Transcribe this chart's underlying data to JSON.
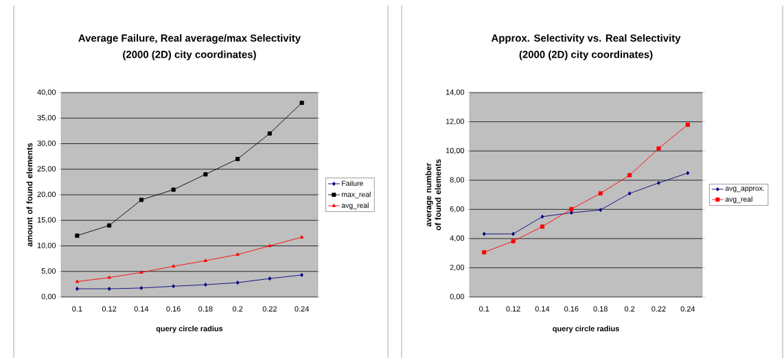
{
  "chart_data": [
    {
      "type": "line",
      "title": "Average Failure, Real average/max Selectivity",
      "subtitle": "(2000 (2D) city coordinates)",
      "xlabel": "query circle radius",
      "ylabel": "amount of found elements",
      "categories": [
        "0.1",
        "0.12",
        "0.14",
        "0.16",
        "0.18",
        "0.2",
        "0.22",
        "0.24"
      ],
      "series": [
        {
          "name": "Failure",
          "color": "#000080",
          "marker": "diamond",
          "values": [
            1.6,
            1.6,
            1.75,
            2.1,
            2.4,
            2.8,
            3.6,
            4.3
          ]
        },
        {
          "name": "max_real",
          "color": "#000000",
          "marker": "square",
          "values": [
            12,
            14,
            19,
            21,
            24,
            27,
            32,
            38
          ]
        },
        {
          "name": "avg_real",
          "color": "#ff0000",
          "marker": "triangle",
          "values": [
            3.0,
            3.8,
            4.8,
            6.0,
            7.1,
            8.3,
            10.0,
            11.7
          ]
        }
      ],
      "ylim": [
        0,
        40
      ],
      "yticks": [
        {
          "value": 0,
          "label": "0,00"
        },
        {
          "value": 5,
          "label": "5,00"
        },
        {
          "value": 10,
          "label": "10,00"
        },
        {
          "value": 15,
          "label": "15,00"
        },
        {
          "value": 20,
          "label": "20,00"
        },
        {
          "value": 25,
          "label": "25,00"
        },
        {
          "value": 30,
          "label": "30,00"
        },
        {
          "value": 35,
          "label": "35,00"
        },
        {
          "value": 40,
          "label": "40,00"
        }
      ],
      "grid": "y",
      "legend": "right",
      "line_style": "solid"
    },
    {
      "type": "line",
      "title": "Approx. Selectivity vs. Real Selectivity",
      "subtitle": "(2000 (2D) city coordinates)",
      "xlabel": "query circle radius",
      "ylabel": "average number of found elements",
      "categories": [
        "0.1",
        "0.12",
        "0.14",
        "0.16",
        "0.18",
        "0.2",
        "0.22",
        "0.24"
      ],
      "series": [
        {
          "name": "avg_approx.",
          "color": "#000080",
          "marker": "diamond",
          "values": [
            4.32,
            4.32,
            5.5,
            5.77,
            5.96,
            7.09,
            7.81,
            8.49
          ]
        },
        {
          "name": "avg_real",
          "color": "#ff0000",
          "marker": "square",
          "values": [
            3.06,
            3.82,
            4.82,
            6.02,
            7.1,
            8.34,
            10.17,
            11.8
          ]
        }
      ],
      "ylim": [
        0,
        14
      ],
      "yticks": [
        {
          "value": 0,
          "label": "0,00"
        },
        {
          "value": 2,
          "label": "2,00"
        },
        {
          "value": 4,
          "label": "4,00"
        },
        {
          "value": 6,
          "label": "6,00"
        },
        {
          "value": 8,
          "label": "8,00"
        },
        {
          "value": 10,
          "label": "10,00"
        },
        {
          "value": 12,
          "label": "12,00"
        },
        {
          "value": 14,
          "label": "14,00"
        }
      ],
      "grid": "y",
      "legend": "right",
      "line_style": "solid"
    }
  ]
}
